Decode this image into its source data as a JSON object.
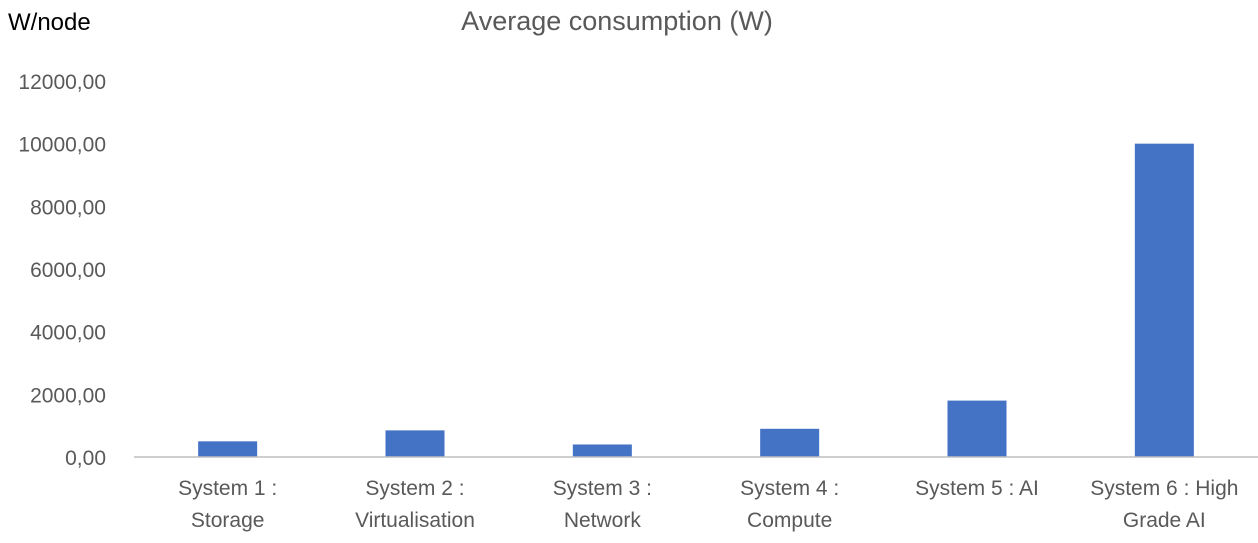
{
  "chart_data": {
    "type": "bar",
    "title": "Average consumption (W)",
    "ylabel": "W/node",
    "xlabel": "",
    "categories": [
      [
        "System 1 :",
        "Storage"
      ],
      [
        "System 2 :",
        "Virtualisation"
      ],
      [
        "System 3 :",
        "Network"
      ],
      [
        "System 4 :",
        "Compute"
      ],
      [
        "System 5 : AI"
      ],
      [
        "System 6 : High",
        "Grade AI"
      ]
    ],
    "values": [
      500,
      850,
      400,
      900,
      1800,
      10000
    ],
    "ylim": [
      0,
      12000
    ],
    "yticks": [
      {
        "value": 0,
        "label": "0,00"
      },
      {
        "value": 2000,
        "label": "2000,00"
      },
      {
        "value": 4000,
        "label": "4000,00"
      },
      {
        "value": 6000,
        "label": "6000,00"
      },
      {
        "value": 8000,
        "label": "8000,00"
      },
      {
        "value": 10000,
        "label": "10000,00"
      },
      {
        "value": 12000,
        "label": "12000,00"
      }
    ],
    "grid": false,
    "legend": "none",
    "colors": {
      "bar": "#4472C4",
      "axis": "#BFBFBF",
      "text": "#595959",
      "ylabel": "#000000"
    }
  }
}
